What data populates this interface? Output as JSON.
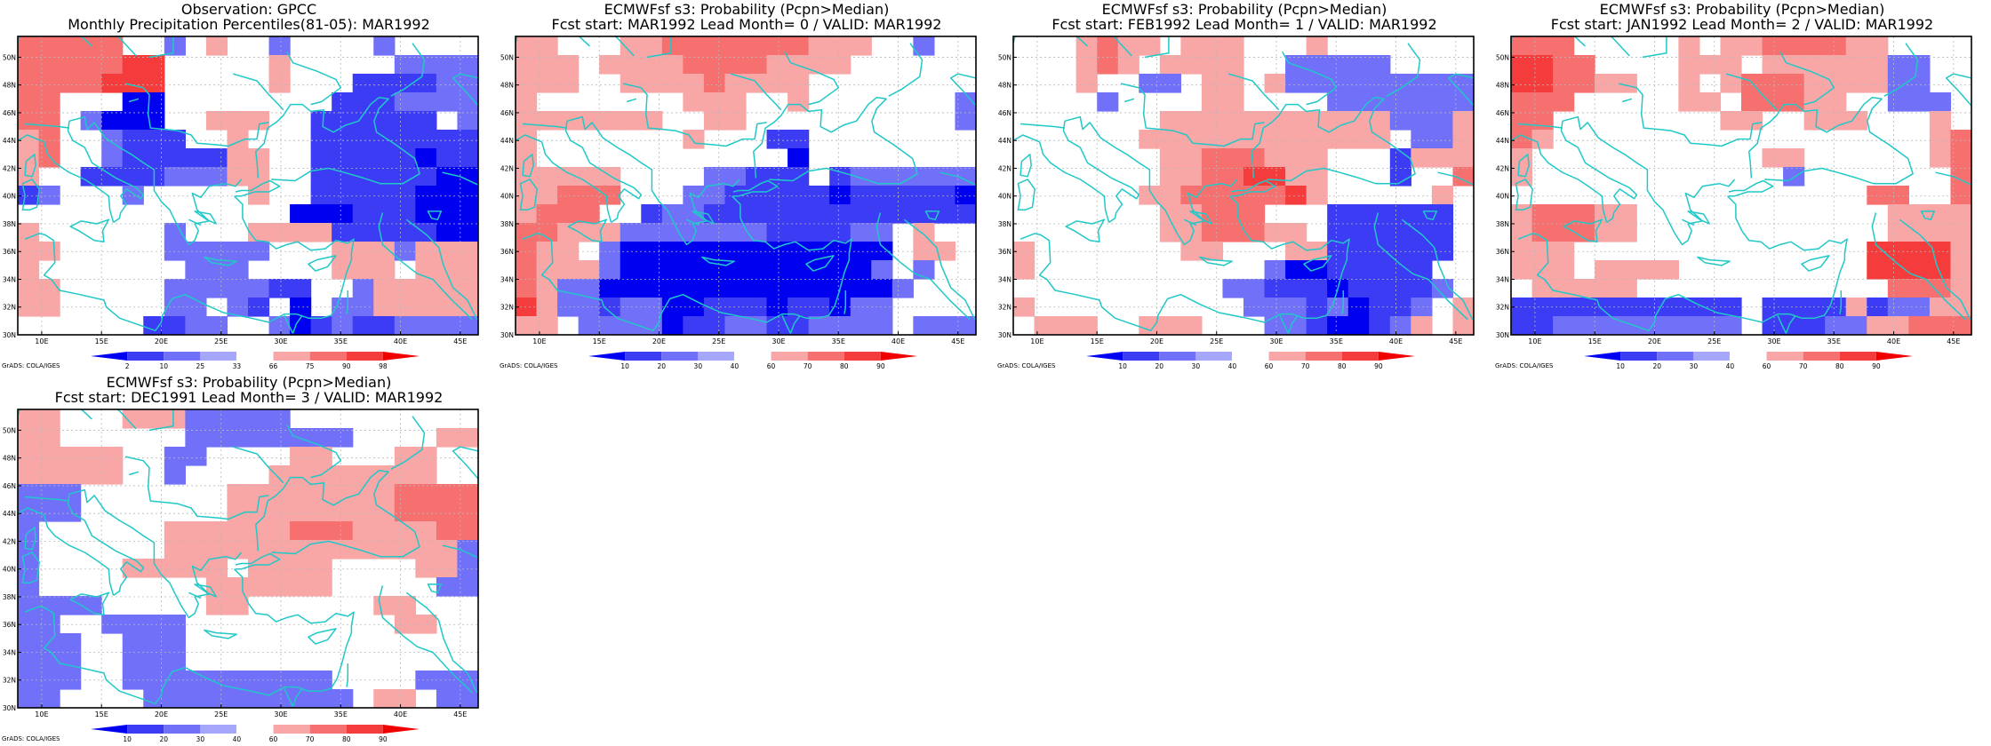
{
  "credit": "GrADS: COLA/IGES",
  "colors": {
    "coast": "#20c8c8",
    "grid": "#b8b8b8",
    "neg": [
      "#0000f0",
      "#3c3cf4",
      "#7070f8",
      "#a6a6fa"
    ],
    "pos": [
      "#f8a6a6",
      "#f67070",
      "#f43c3c",
      "#f00000"
    ]
  },
  "lon_ticks": [
    "10E",
    "15E",
    "20E",
    "25E",
    "30E",
    "35E",
    "40E",
    "45E"
  ],
  "lat_ticks": [
    "30N",
    "32N",
    "34N",
    "36N",
    "38N",
    "40N",
    "42N",
    "44N",
    "46N",
    "48N",
    "50N"
  ],
  "panels": [
    {
      "title1": "Observation: GPCC",
      "title2": "Monthly Precipitation Percentiles(81-05): MAR1992",
      "legend": [
        "2",
        "10",
        "25",
        "33",
        "66",
        "75",
        "90",
        "98"
      ],
      "grid": [
        "6666600N0P00N0000N0000",
        "666667700000P00000NNNN",
        "666677700000P000MMMMNN",
        "66000LL00000000MMMNNNN",
        "660NLLL00PPP00MMMMMM0N",
        "P600NMMM00P000MMMMMMMM",
        "P600NMMMMMPP00MMMMMLMM",
        "P00MMMMNNNPP00MMMMMMLL",
        "MN000N00000P00MMMMMLLL",
        "0000000000000LLLMMMLLL",
        "P000000N000PPPPMMMMMLL",
        "PP00000NNNNN000PPPNPPP",
        "P0000000NNN0000PPP0PPP",
        "PP00000NNNNNMM00NPPPPP",
        "PP00000NN0NM0L0NNPPPPP",
        "000000MMNN00NLMNMMNNNN"
      ]
    },
    {
      "title1": "ECMWFsf s3: Probability (Pcpn>Median)",
      "title2": "Fcst start: MAR1992  Lead Month= 0 / VALID: MAR1992",
      "legend": [
        "10",
        "20",
        "30",
        "40",
        "60",
        "70",
        "80",
        "90"
      ],
      "grid": [
        "PP000PP6666666PPP00N00",
        "PPP0PPPP6666PPPP000000",
        "PPP00PPPP6PPPP00000000",
        "P0000000PPP00P0000000N",
        "PPPPPPP00PP0000000000N",
        "P0000000P000MM00000000",
        "P000000000000L00000000",
        "PPPPP0000NNMMM0MNNNNNN",
        "PP666000NNMMMMMLMMMMML",
        "P66600MNNMMMMMMMMMMMMM",
        "66PPPNNNNNNNMMMMNN0P00",
        "6PP0NLLLLLLLLLLLLL0PP0",
        "6PPPNLLLLLLLLLLLLN0N00",
        "6PNNLLLLLLLLLLLLLLN000",
        "7PNNMNNLLMMMLMMLNN0000",
        "PP0NNNNLMMNNMMNNNN0NNN"
      ]
    },
    {
      "title1": "ECMWFsf s3: Probability (Pcpn>Median)",
      "title2": "Fcst start: FEB1992  Lead Month= 1 / VALID: MAR1992",
      "legend": [
        "10",
        "20",
        "30",
        "40",
        "60",
        "70",
        "80",
        "90"
      ],
      "grid": [
        "000P6PP0PPP000P0000000",
        "000P6P0PPPP00NNNNN0000",
        "000P00NN0PP0PNNNNNNNNN",
        "0000N0000PP0000NNNNNNN",
        "0000000PPPPPPPPPPPNNNP",
        "000000PPPPPPPPPPPP0NNP",
        "0000000PP666PPP000MPPP",
        "0000000PP6677PP000M006",
        "000000PP666667P00000P0",
        "0000000PP666000MMMMMM0",
        "0000000PP666PP0MMMMMM0",
        "P0000000PP000PPMMMMMM0",
        "P00000000000NLLMMMMM00",
        "0000000000NNMMMLMMMMN0",
        "P0000000000NNNMNLMMN0P",
        "0PPP00PPP000NNMLLMNP0P"
      ]
    },
    {
      "title1": "ECMWFsf s3: Probability (Pcpn>Median)",
      "title2": "Fcst start: JAN1992  Lead Month= 2 / VALID: MAR1992",
      "legend": [
        "10",
        "20",
        "30",
        "40",
        "60",
        "70",
        "80",
        "90"
      ],
      "grid": [
        "66600000P0PP6666PP0000",
        "77660000PPP0PPPPPPNN00",
        "7766PP00P0P666PPPPNN00",
        "66600000PP0666PP00NNN0",
        "6600000000PP00PPP000P0",
        "6P000000000000000000P6",
        "P00000000000PP000000P6",
        "P000000000000N00000006",
        "0000000000000000066006",
        "P666PP000000000000PPPP",
        "P666PP000000000000PPPP",
        "PPP000000000000007777P",
        "PPP0PPPP0000000007777P",
        "0PPPPP000000000000666P",
        "MMMMMMMMMMM0MMMMPMNNPP",
        "MMNNNNNNNNN0MMMNNPP666"
      ]
    },
    {
      "title1": "ECMWFsf s3: Probability (Pcpn>Median)",
      "title2": "Fcst start: DEC1991  Lead Month= 3 / VALID: MAR1992",
      "legend": [
        "10",
        "20",
        "30",
        "40",
        "60",
        "70",
        "80",
        "90"
      ],
      "grid": [
        "PP000PPPNNNNN000000000",
        "PP000000NNNNNNNN0000PP",
        "PPPPP00NN0000PP000PP00",
        "PPPPP00N0000PPPPPPPP00",
        "NNN0000000PPPPPPPP6666",
        "NNN0000000PPPPPPPP6666",
        "N000000PPPPPP666PPPP66",
        "N000000PPPPPPPPPPPPPPN",
        "N0000PPPPP0PPPP0000PPN",
        "N00000000PPPPPP00000NN",
        "NNNN00000PP000000PP000",
        "NN00NNNN0000000000PP00",
        "NNN00NNN00000000000000",
        "NNN00NNN00000000000000",
        "NNN00NNNNNNNNNN0000NNN",
        "NN0000NNNNNNNNNN0PP0NN"
      ]
    }
  ]
}
